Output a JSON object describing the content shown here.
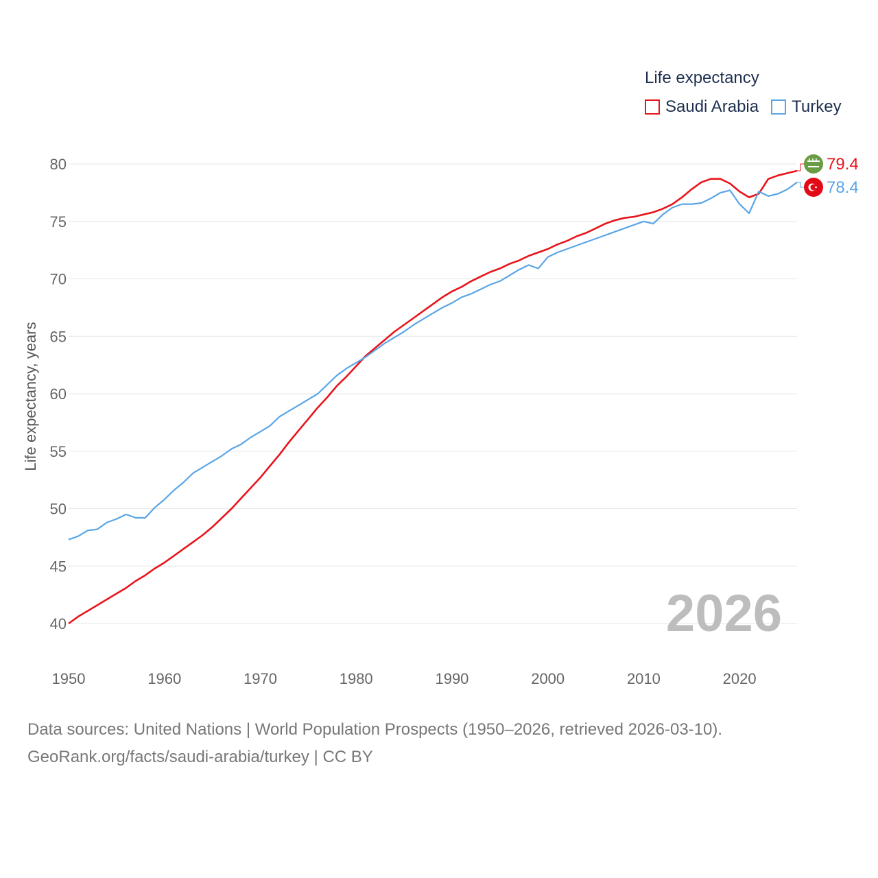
{
  "legend": {
    "title": "Life expectancy",
    "items": [
      {
        "name": "Saudi Arabia",
        "color": "#e8141b"
      },
      {
        "name": "Turkey",
        "color": "#5aa5e6"
      }
    ]
  },
  "chart_data": {
    "type": "line",
    "title": "Life expectancy",
    "xlabel": "",
    "ylabel": "Life expectancy, years",
    "xlim": [
      1950,
      2026
    ],
    "ylim": [
      40,
      80
    ],
    "xticks": [
      1950,
      1960,
      1970,
      1980,
      1990,
      2000,
      2010,
      2020
    ],
    "yticks": [
      40,
      45,
      50,
      55,
      60,
      65,
      70,
      75,
      80
    ],
    "grid": true,
    "year_annotation": "2026",
    "series": [
      {
        "name": "Saudi Arabia",
        "color": "#e8141b",
        "end_label": "79.4",
        "end_icon": "saudi-arabia-flag-icon",
        "x": [
          1950,
          1951,
          1952,
          1953,
          1954,
          1955,
          1956,
          1957,
          1958,
          1959,
          1960,
          1961,
          1962,
          1963,
          1964,
          1965,
          1966,
          1967,
          1968,
          1969,
          1970,
          1971,
          1972,
          1973,
          1974,
          1975,
          1976,
          1977,
          1978,
          1979,
          1980,
          1981,
          1982,
          1983,
          1984,
          1985,
          1986,
          1987,
          1988,
          1989,
          1990,
          1991,
          1992,
          1993,
          1994,
          1995,
          1996,
          1997,
          1998,
          1999,
          2000,
          2001,
          2002,
          2003,
          2004,
          2005,
          2006,
          2007,
          2008,
          2009,
          2010,
          2011,
          2012,
          2013,
          2014,
          2015,
          2016,
          2017,
          2018,
          2019,
          2020,
          2021,
          2022,
          2023,
          2024,
          2025,
          2026
        ],
        "values": [
          40.0,
          40.6,
          41.1,
          41.6,
          42.1,
          42.6,
          43.1,
          43.7,
          44.2,
          44.8,
          45.3,
          45.9,
          46.5,
          47.1,
          47.7,
          48.4,
          49.2,
          50.0,
          50.9,
          51.8,
          52.7,
          53.7,
          54.7,
          55.8,
          56.8,
          57.8,
          58.8,
          59.7,
          60.7,
          61.5,
          62.4,
          63.3,
          64.0,
          64.7,
          65.4,
          66.0,
          66.6,
          67.2,
          67.8,
          68.4,
          68.9,
          69.3,
          69.8,
          70.2,
          70.6,
          70.9,
          71.3,
          71.6,
          72.0,
          72.3,
          72.6,
          73.0,
          73.3,
          73.7,
          74.0,
          74.4,
          74.8,
          75.1,
          75.3,
          75.4,
          75.6,
          75.8,
          76.1,
          76.5,
          77.1,
          77.8,
          78.4,
          78.7,
          78.7,
          78.3,
          77.6,
          77.1,
          77.4,
          78.7,
          79.0,
          79.2,
          79.4
        ]
      },
      {
        "name": "Turkey",
        "color": "#5aa5e6",
        "end_label": "78.4",
        "end_icon": "turkey-flag-icon",
        "x": [
          1950,
          1951,
          1952,
          1953,
          1954,
          1955,
          1956,
          1957,
          1958,
          1959,
          1960,
          1961,
          1962,
          1963,
          1964,
          1965,
          1966,
          1967,
          1968,
          1969,
          1970,
          1971,
          1972,
          1973,
          1974,
          1975,
          1976,
          1977,
          1978,
          1979,
          1980,
          1981,
          1982,
          1983,
          1984,
          1985,
          1986,
          1987,
          1988,
          1989,
          1990,
          1991,
          1992,
          1993,
          1994,
          1995,
          1996,
          1997,
          1998,
          1999,
          2000,
          2001,
          2002,
          2003,
          2004,
          2005,
          2006,
          2007,
          2008,
          2009,
          2010,
          2011,
          2012,
          2013,
          2014,
          2015,
          2016,
          2017,
          2018,
          2019,
          2020,
          2021,
          2022,
          2023,
          2024,
          2025,
          2026
        ],
        "values": [
          47.3,
          47.6,
          48.1,
          48.2,
          48.8,
          49.1,
          49.5,
          49.2,
          49.2,
          50.1,
          50.8,
          51.6,
          52.3,
          53.1,
          53.6,
          54.1,
          54.6,
          55.2,
          55.6,
          56.2,
          56.7,
          57.2,
          58.0,
          58.5,
          59.0,
          59.5,
          60.0,
          60.8,
          61.6,
          62.2,
          62.7,
          63.2,
          63.8,
          64.4,
          64.9,
          65.4,
          66.0,
          66.5,
          67.0,
          67.5,
          67.9,
          68.4,
          68.7,
          69.1,
          69.5,
          69.8,
          70.3,
          70.8,
          71.2,
          70.9,
          71.9,
          72.3,
          72.6,
          72.9,
          73.2,
          73.5,
          73.8,
          74.1,
          74.4,
          74.7,
          75.0,
          74.8,
          75.6,
          76.2,
          76.5,
          76.5,
          76.6,
          77.0,
          77.5,
          77.7,
          76.5,
          75.7,
          77.6,
          77.2,
          77.4,
          77.8,
          78.4
        ]
      }
    ]
  },
  "source": {
    "line1": "Data sources: United Nations | World Population Prospects (1950–2026, retrieved 2026-03-10).",
    "line2": "GeoRank.org/facts/saudi-arabia/turkey | CC BY"
  }
}
